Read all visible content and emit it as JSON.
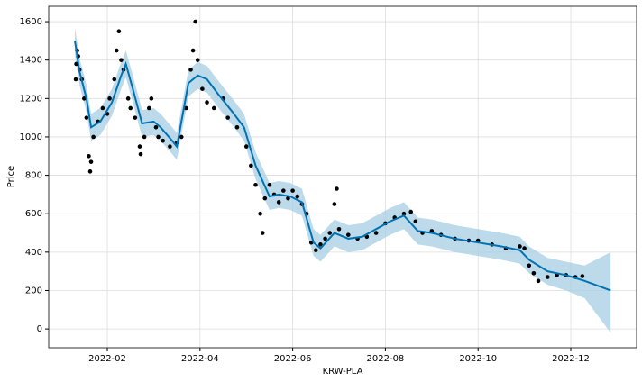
{
  "chart_data": {
    "type": "forecast",
    "xlabel": "KRW-PLA",
    "ylabel": "Price",
    "xlim": [
      0.735,
      13.42
    ],
    "ylim": [
      -98,
      1680
    ],
    "xticks": [
      {
        "value": 2,
        "label": "2022-02"
      },
      {
        "value": 4,
        "label": "2022-04"
      },
      {
        "value": 6,
        "label": "2022-06"
      },
      {
        "value": 8,
        "label": "2022-08"
      },
      {
        "value": 10,
        "label": "2022-10"
      },
      {
        "value": 12,
        "label": "2022-12"
      }
    ],
    "yticks": [
      0,
      200,
      400,
      600,
      800,
      1000,
      1200,
      1400,
      1600
    ],
    "grid": true,
    "color": "#0072b2",
    "band_color": "#a6cee3",
    "point_color": "#000000",
    "x": [
      1.3,
      1.4,
      1.55,
      1.65,
      1.85,
      2.1,
      2.3,
      2.4,
      2.55,
      2.75,
      3.0,
      3.15,
      3.4,
      3.5,
      3.75,
      3.95,
      4.15,
      4.4,
      4.7,
      4.95,
      5.2,
      5.5,
      5.7,
      5.95,
      6.2,
      6.45,
      6.6,
      6.9,
      7.2,
      7.5,
      7.8,
      8.1,
      8.4,
      8.7,
      9.0,
      9.5,
      10.0,
      10.5,
      10.9,
      11.1,
      11.5,
      11.9,
      12.3,
      12.86
    ],
    "values": [
      1500,
      1340,
      1200,
      1050,
      1080,
      1180,
      1320,
      1380,
      1250,
      1070,
      1080,
      1050,
      980,
      950,
      1280,
      1320,
      1300,
      1220,
      1130,
      1050,
      850,
      690,
      700,
      690,
      660,
      450,
      420,
      500,
      470,
      480,
      520,
      560,
      590,
      510,
      500,
      470,
      450,
      430,
      410,
      360,
      300,
      280,
      250,
      200
    ],
    "upper": [
      1570,
      1410,
      1270,
      1120,
      1150,
      1250,
      1390,
      1450,
      1320,
      1140,
      1150,
      1120,
      1050,
      1020,
      1350,
      1390,
      1370,
      1290,
      1200,
      1120,
      920,
      760,
      770,
      760,
      730,
      520,
      490,
      570,
      540,
      550,
      590,
      630,
      660,
      580,
      570,
      540,
      520,
      500,
      480,
      430,
      370,
      350,
      330,
      400
    ],
    "lower": [
      1430,
      1270,
      1130,
      980,
      1010,
      1110,
      1250,
      1310,
      1180,
      1000,
      1010,
      980,
      910,
      880,
      1210,
      1250,
      1230,
      1150,
      1060,
      980,
      780,
      620,
      630,
      620,
      590,
      380,
      350,
      430,
      400,
      410,
      450,
      490,
      520,
      440,
      430,
      400,
      380,
      360,
      340,
      290,
      230,
      200,
      160,
      -20
    ],
    "points": {
      "x": [
        1.32,
        1.33,
        1.35,
        1.37,
        1.4,
        1.45,
        1.5,
        1.55,
        1.6,
        1.63,
        1.65,
        1.7,
        1.8,
        1.9,
        2.0,
        2.05,
        2.15,
        2.2,
        2.25,
        2.3,
        2.35,
        2.45,
        2.5,
        2.6,
        2.7,
        2.72,
        2.8,
        2.9,
        2.95,
        3.05,
        3.1,
        3.2,
        3.35,
        3.5,
        3.6,
        3.7,
        3.8,
        3.85,
        3.9,
        3.95,
        4.05,
        4.15,
        4.3,
        4.5,
        4.6,
        4.8,
        5.0,
        5.1,
        5.2,
        5.3,
        5.35,
        5.4,
        5.5,
        5.6,
        5.7,
        5.8,
        5.9,
        6.0,
        6.1,
        6.2,
        6.3,
        6.4,
        6.5,
        6.6,
        6.7,
        6.8,
        6.9,
        6.95,
        7.0,
        7.2,
        7.4,
        7.6,
        7.8,
        8.0,
        8.2,
        8.4,
        8.55,
        8.65,
        8.8,
        9.0,
        9.2,
        9.5,
        9.8,
        10.0,
        10.3,
        10.6,
        10.9,
        11.0,
        11.1,
        11.2,
        11.3,
        11.5,
        11.7,
        11.9,
        12.1,
        12.25
      ],
      "values": [
        1300,
        1380,
        1450,
        1420,
        1350,
        1300,
        1200,
        1100,
        900,
        820,
        870,
        1000,
        1080,
        1150,
        1120,
        1200,
        1300,
        1450,
        1550,
        1400,
        1350,
        1200,
        1150,
        1100,
        950,
        910,
        1000,
        1150,
        1200,
        1050,
        1000,
        980,
        950,
        970,
        1000,
        1150,
        1350,
        1450,
        1600,
        1400,
        1250,
        1180,
        1150,
        1200,
        1100,
        1050,
        950,
        850,
        750,
        600,
        500,
        680,
        750,
        700,
        660,
        720,
        680,
        720,
        690,
        650,
        600,
        450,
        410,
        440,
        470,
        500,
        650,
        730,
        520,
        490,
        470,
        480,
        500,
        550,
        580,
        600,
        610,
        560,
        500,
        510,
        490,
        470,
        460,
        460,
        440,
        420,
        430,
        420,
        330,
        290,
        250,
        270,
        280,
        280,
        270,
        275
      ]
    }
  }
}
